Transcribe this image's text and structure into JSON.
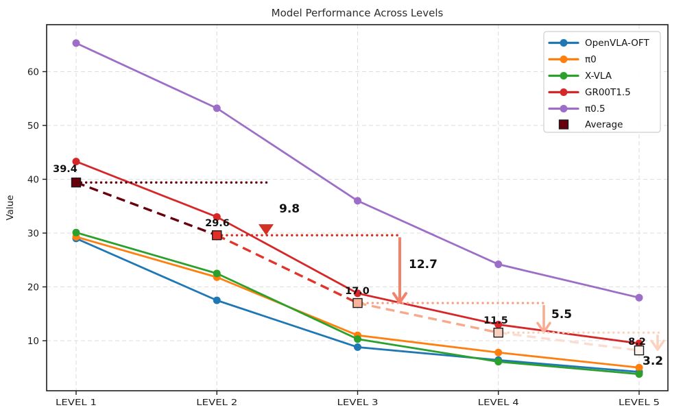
{
  "chart_data": {
    "type": "line",
    "title": "Model Performance Across Levels",
    "xlabel": "",
    "ylabel": "Value",
    "categories": [
      "LEVEL 1",
      "LEVEL 2",
      "LEVEL 3",
      "LEVEL 4",
      "LEVEL 5"
    ],
    "y_ticks": [
      10,
      20,
      30,
      40,
      50,
      60
    ],
    "ylim": [
      0.7,
      68.7
    ],
    "grid": true,
    "legend_position": "upper right",
    "series": [
      {
        "name": "OpenVLA-OFT",
        "color": "#1f77b4",
        "marker": "circle",
        "values": [
          29.0,
          17.5,
          8.8,
          6.4,
          4.2
        ]
      },
      {
        "name": "π0",
        "color": "#ff7f0e",
        "marker": "circle",
        "values": [
          29.3,
          21.8,
          11.0,
          7.8,
          5.0
        ]
      },
      {
        "name": "X-VLA",
        "color": "#2ca02c",
        "marker": "circle",
        "values": [
          30.1,
          22.5,
          10.3,
          6.1,
          3.8
        ]
      },
      {
        "name": "GR00T1.5",
        "color": "#d62728",
        "marker": "circle",
        "values": [
          43.3,
          33.0,
          18.8,
          13.0,
          9.5
        ]
      },
      {
        "name": "π0.5",
        "color": "#9d6ec7",
        "marker": "circle",
        "values": [
          65.3,
          53.2,
          36.0,
          24.2,
          18.0
        ]
      }
    ],
    "average_series": {
      "name": "Average",
      "marker": "square",
      "line_style": "dashed",
      "values": [
        39.4,
        29.6,
        17.0,
        11.5,
        8.2
      ],
      "value_labels": [
        "39.4",
        "29.6",
        "17.0",
        "11.5",
        "8.2"
      ],
      "marker_colors": [
        "#67000d",
        "#e32f27",
        "#f9b49c",
        "#f6cfbe",
        "#fdf4ee"
      ],
      "marker_edge_color": "#1a1a1a",
      "segment_colors": [
        "#67000d",
        "#e0352b",
        "#f7a98b",
        "#fbdcd0"
      ]
    },
    "drop_annotations": [
      {
        "label": "9.8",
        "from_level": "LEVEL 1",
        "to_level": "LEVEL 2",
        "from_value": 39.4,
        "to_value": 29.6,
        "dotted_color": "#67000d",
        "arrow_color_top": "#7f0d12",
        "arrow_color_tip": "#d23126"
      },
      {
        "label": "12.7",
        "from_level": "LEVEL 2",
        "to_level": "LEVEL 3",
        "from_value": 29.6,
        "to_value": 17.0,
        "dotted_color": "#d7281d",
        "arrow_color_top": "#f4826a",
        "arrow_color_tip": "#f4826a"
      },
      {
        "label": "5.5",
        "from_level": "LEVEL 3",
        "to_level": "LEVEL 4",
        "from_value": 17.0,
        "to_value": 11.5,
        "dotted_color": "#f8a184",
        "arrow_color_top": "#f8ab90",
        "arrow_color_tip": "#f8ab90"
      },
      {
        "label": "3.2",
        "from_level": "LEVEL 4",
        "to_level": "LEVEL 5",
        "from_value": 11.5,
        "to_value": 8.2,
        "dotted_color": "#fbd2c0",
        "arrow_color_top": "#fbd2c0",
        "arrow_color_tip": "#fbd2c0"
      }
    ],
    "legend": {
      "entries": [
        "OpenVLA-OFT",
        "π0",
        "X-VLA",
        "GR00T1.5",
        "π0.5",
        "Average"
      ]
    },
    "colors": {
      "grid": "#dedede",
      "spine": "#1c1c1c",
      "annotation_text": "#111111",
      "title_text": "#2e2e2e",
      "legend_border": "#cfcfcf",
      "background": "#ffffff"
    }
  }
}
